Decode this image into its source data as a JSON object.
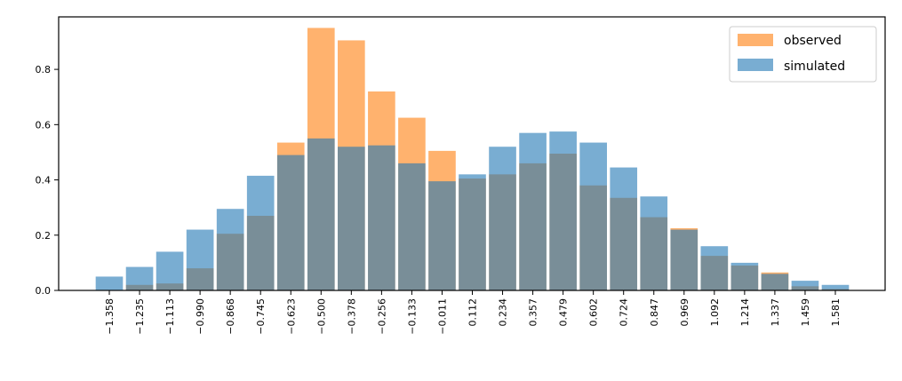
{
  "chart_data": {
    "type": "bar",
    "title": "",
    "xlabel": "",
    "ylabel": "",
    "ylim": [
      0,
      0.99
    ],
    "yticks": [
      0.0,
      0.2,
      0.4,
      0.6,
      0.8
    ],
    "ytick_labels": [
      "0.0",
      "0.2",
      "0.4",
      "0.6",
      "0.8"
    ],
    "grid": false,
    "legend_position": "top-right",
    "categories": [
      "−1.358",
      "−1.235",
      "−1.113",
      "−0.990",
      "−0.868",
      "−0.745",
      "−0.623",
      "−0.500",
      "−0.378",
      "−0.256",
      "−0.133",
      "−0.011",
      "0.112",
      "0.234",
      "0.357",
      "0.479",
      "0.602",
      "0.724",
      "0.847",
      "0.969",
      "1.092",
      "1.214",
      "1.337",
      "1.459",
      "1.581"
    ],
    "series": [
      {
        "name": "observed",
        "color": "#ff7f0e",
        "opacity": 0.6,
        "values": [
          0.0,
          0.02,
          0.025,
          0.08,
          0.205,
          0.27,
          0.535,
          0.95,
          0.905,
          0.72,
          0.625,
          0.505,
          0.405,
          0.42,
          0.46,
          0.495,
          0.38,
          0.335,
          0.265,
          0.225,
          0.125,
          0.09,
          0.065,
          0.015,
          0.005
        ]
      },
      {
        "name": "simulated",
        "color": "#1f77b4",
        "opacity": 0.6,
        "values": [
          0.05,
          0.085,
          0.14,
          0.22,
          0.295,
          0.415,
          0.49,
          0.55,
          0.52,
          0.525,
          0.46,
          0.395,
          0.42,
          0.52,
          0.57,
          0.575,
          0.535,
          0.445,
          0.34,
          0.22,
          0.16,
          0.1,
          0.06,
          0.035,
          0.02
        ]
      }
    ]
  }
}
